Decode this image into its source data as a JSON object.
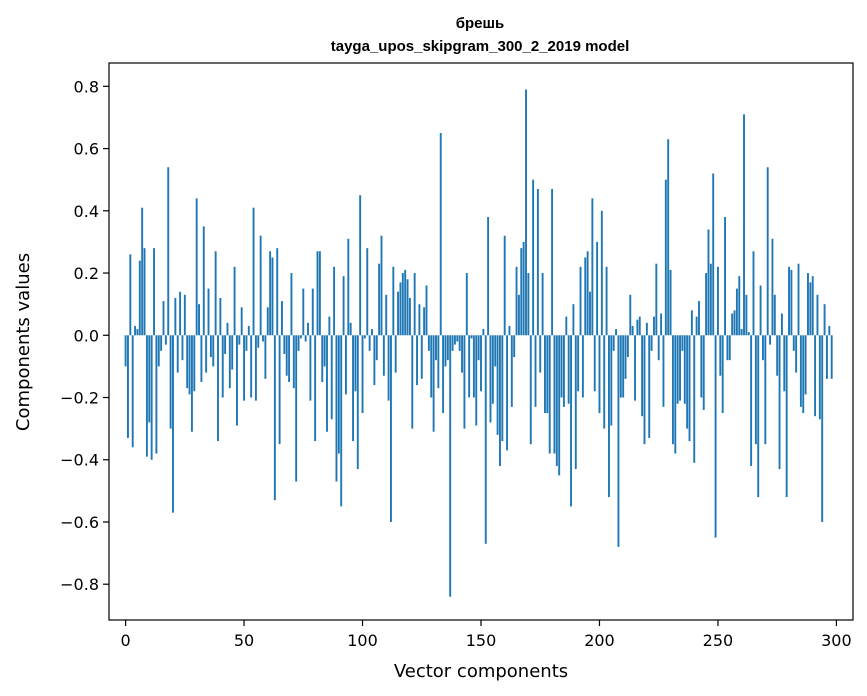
{
  "chart_data": {
    "type": "bar",
    "title": "брешь",
    "subtitle": "tayga_upos_skipgram_300_2_2019 model",
    "xlabel": "Vector components",
    "ylabel": "Components values",
    "xlim": [
      -7,
      307
    ],
    "ylim": [
      -0.915,
      0.875
    ],
    "xticks": [
      0,
      50,
      100,
      150,
      200,
      250,
      300
    ],
    "yticks": [
      -0.8,
      -0.6,
      -0.4,
      -0.2,
      0.0,
      0.2,
      0.4,
      0.6,
      0.8
    ],
    "ytick_labels": [
      "−0.8",
      "−0.6",
      "−0.4",
      "−0.2",
      "0.0",
      "0.2",
      "0.4",
      "0.6",
      "0.8"
    ],
    "grid": false,
    "color": "#1f77b4",
    "values": [
      -0.1,
      -0.33,
      0.26,
      -0.36,
      0.03,
      0.02,
      0.24,
      0.41,
      0.28,
      -0.39,
      -0.28,
      -0.4,
      0.28,
      -0.38,
      -0.1,
      -0.05,
      0.11,
      -0.03,
      0.54,
      -0.3,
      -0.57,
      0.12,
      -0.12,
      0.14,
      -0.08,
      0.13,
      -0.17,
      -0.19,
      -0.31,
      -0.18,
      0.44,
      0.1,
      -0.15,
      0.35,
      -0.12,
      0.15,
      -0.07,
      -0.1,
      0.27,
      -0.34,
      0.12,
      -0.2,
      -0.06,
      0.04,
      -0.17,
      -0.11,
      0.22,
      -0.29,
      -0.03,
      0.09,
      -0.21,
      -0.05,
      0.03,
      -0.2,
      0.41,
      -0.21,
      -0.04,
      0.32,
      -0.02,
      -0.14,
      0.09,
      0.27,
      0.25,
      -0.53,
      0.28,
      -0.35,
      0.11,
      -0.06,
      -0.13,
      -0.15,
      0.2,
      -0.17,
      -0.47,
      -0.05,
      -0.01,
      0.15,
      -0.02,
      0.04,
      -0.21,
      0.15,
      -0.34,
      0.27,
      0.27,
      -0.15,
      -0.1,
      -0.31,
      0.06,
      -0.27,
      0.22,
      -0.47,
      -0.38,
      -0.55,
      0.19,
      -0.19,
      0.31,
      0.04,
      -0.34,
      -0.18,
      -0.43,
      0.45,
      -0.25,
      -0.01,
      0.28,
      -0.05,
      0.02,
      -0.16,
      -0.08,
      0.23,
      0.32,
      -0.13,
      0.13,
      -0.21,
      -0.6,
      0.22,
      -0.12,
      0.14,
      0.17,
      0.2,
      0.21,
      0.18,
      0.12,
      -0.3,
      0.2,
      -0.16,
      0.1,
      -0.14,
      0.09,
      0.16,
      -0.05,
      -0.2,
      -0.31,
      -0.08,
      -0.17,
      0.65,
      -0.25,
      -0.1,
      -0.08,
      -0.84,
      -0.05,
      -0.03,
      -0.02,
      -0.05,
      -0.12,
      -0.3,
      0.2,
      -0.2,
      -0.01,
      -0.2,
      -0.29,
      -0.08,
      -0.18,
      0.02,
      -0.67,
      0.38,
      -0.28,
      -0.22,
      -0.1,
      -0.32,
      -0.42,
      -0.34,
      0.32,
      -0.37,
      0.03,
      -0.23,
      -0.07,
      0.22,
      0.13,
      0.28,
      0.3,
      0.79,
      0.2,
      -0.35,
      0.5,
      -0.23,
      0.47,
      -0.12,
      0.2,
      -0.25,
      -0.25,
      -0.38,
      0.47,
      -0.38,
      -0.42,
      -0.45,
      -0.2,
      -0.23,
      0.06,
      -0.22,
      -0.55,
      0.1,
      -0.43,
      -0.18,
      0.22,
      -0.2,
      0.25,
      0.27,
      0.14,
      0.44,
      -0.18,
      0.3,
      -0.25,
      0.4,
      -0.3,
      0.22,
      -0.52,
      -0.29,
      -0.05,
      0.02,
      -0.68,
      -0.2,
      -0.2,
      -0.14,
      -0.07,
      0.13,
      0.03,
      -0.21,
      0.05,
      0.06,
      -0.26,
      -0.35,
      0.04,
      -0.33,
      -0.05,
      0.06,
      0.23,
      -0.08,
      0.07,
      -0.23,
      0.5,
      0.63,
      0.21,
      -0.35,
      -0.38,
      -0.22,
      -0.21,
      -0.05,
      -0.22,
      -0.3,
      -0.34,
      0.08,
      -0.41,
      0.06,
      0.11,
      -0.2,
      -0.24,
      0.2,
      0.34,
      0.23,
      0.52,
      -0.65,
      0.22,
      -0.13,
      -0.25,
      0.38,
      -0.08,
      -0.08,
      0.07,
      0.08,
      0.15,
      0.19,
      0.02,
      0.71,
      0.13,
      0.01,
      -0.42,
      0.27,
      -0.35,
      -0.52,
      0.16,
      -0.08,
      -0.35,
      0.54,
      -0.03,
      0.31,
      0.13,
      -0.13,
      -0.43,
      0.07,
      -0.18,
      -0.52,
      0.22,
      0.21,
      -0.05,
      -0.12,
      0.23,
      -0.23,
      -0.25,
      -0.19,
      0.2,
      0.17,
      0.19,
      -0.26,
      0.13,
      -0.27,
      -0.6,
      0.1,
      -0.14,
      0.03,
      -0.14
    ]
  }
}
